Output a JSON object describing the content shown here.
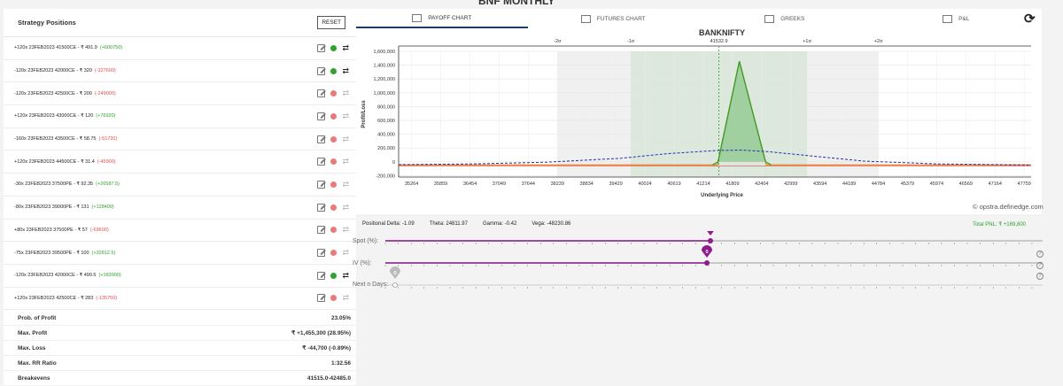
{
  "page_title": "BNF MONTHLY",
  "left_panel": {
    "title": "Strategy Positions",
    "reset_label": "RESET",
    "positions": [
      {
        "text": "+120x  23FEB2023  41500CE  - ₹ 491.9",
        "pnl": "(+600750)",
        "pnl_sign": "pos",
        "active": true
      },
      {
        "text": "-120x  23FEB2023  42000CE  - ₹ 320",
        "pnl": "(-327600)",
        "pnl_sign": "neg",
        "active": true
      },
      {
        "text": "-120x  23FEB2023  42500CE  - ₹ 200",
        "pnl": "(-249000)",
        "pnl_sign": "neg",
        "active": false
      },
      {
        "text": "+120x  23FEB2023  43000CE  - ₹ 120",
        "pnl": "(+76920)",
        "pnl_sign": "pos",
        "active": false
      },
      {
        "text": "-160x  23FEB2023  43500CE  - ₹ 58.75",
        "pnl": "(-51720)",
        "pnl_sign": "neg",
        "active": false
      },
      {
        "text": "+120x  23FEB2023  44500CE  - ₹ 31.4",
        "pnl": "(-45900)",
        "pnl_sign": "neg",
        "active": false
      },
      {
        "text": "-30x  23FEB2023  37500PE  - ₹ 92.35",
        "pnl": "(+26587.5)",
        "pnl_sign": "pos",
        "active": false
      },
      {
        "text": "-80x  23FEB2023  39000PE  - ₹ 131",
        "pnl": "(+128400)",
        "pnl_sign": "pos",
        "active": false
      },
      {
        "text": "+80x  23FEB2023  37500PE  - ₹ 57",
        "pnl": "(-69600)",
        "pnl_sign": "neg",
        "active": false
      },
      {
        "text": "-75x  23FEB2023  39500PE  - ₹ 100",
        "pnl": "(+32812.5)",
        "pnl_sign": "pos",
        "active": false
      },
      {
        "text": "-120x  23FEB2023  42000CE  - ₹ 490.5",
        "pnl": "(+183900)",
        "pnl_sign": "pos",
        "active": true
      },
      {
        "text": "+120x  23FEB2023  42500CE  - ₹ 283",
        "pnl": "(-135750)",
        "pnl_sign": "neg",
        "active": false
      }
    ],
    "stats": [
      {
        "label": "Prob. of Profit",
        "value": "23.05%"
      },
      {
        "label": "Max. Profit",
        "value": "₹ +1,455,300 (28.95%)"
      },
      {
        "label": "Max. Loss",
        "value": "₹ -44,700 (-0.89%)"
      },
      {
        "label": "Max. RR Ratio",
        "value": "1:32.56"
      },
      {
        "label": "Breakevens",
        "value": "41515.0-42485.0"
      }
    ]
  },
  "tabs": [
    {
      "label": "PAYOFF CHART",
      "icon": "area-chart-icon",
      "active": true
    },
    {
      "label": "FUTURES CHART",
      "icon": "bar-chart-icon",
      "active": false
    },
    {
      "label": "GREEKS",
      "icon": "greeks-table-icon",
      "active": false
    },
    {
      "label": "P&L",
      "icon": "pnl-table-icon",
      "active": false
    }
  ],
  "greeks_bar": {
    "delta": "Positional Delta: -1.09",
    "theta": "Theta: 24811.97",
    "gamma": "Gamma: -0.42",
    "vega": "Vega: -48230.86",
    "total_pnl": "Total PNL: ₹ +169,800"
  },
  "credit": "opstra.definedge.com",
  "sliders": {
    "spot_label": "Spot (%):",
    "spot_value": "0",
    "iv_label": "IV (%):",
    "iv_value": "0",
    "days_label": "Next n Days:",
    "days_value": "0",
    "help": "?"
  },
  "colors": {
    "profit": "#2ea12e",
    "loss": "#e24b4b",
    "expiry_line": "#f08a2b",
    "today_line": "#1f2fb0",
    "slider": "#8e1a8e",
    "sd_band_outer": "#f0f0f0",
    "sd_band_inner": "#dde8dd"
  },
  "chart_data": {
    "type": "line",
    "title": "BANKNIFTY",
    "xlabel": "Underlying Price",
    "ylabel": "Profit/Loss",
    "x_ticks": [
      35264,
      35859,
      36454,
      37049,
      37644,
      38239,
      38834,
      39429,
      40024,
      40619,
      41214,
      41809,
      42404,
      42999,
      43594,
      44189,
      44784,
      45379,
      45974,
      46569,
      47164,
      47759
    ],
    "y_ticks": [
      -200000,
      0,
      200000,
      400000,
      600000,
      800000,
      1000000,
      1200000,
      1400000,
      1600000
    ],
    "y_tick_labels": [
      "-200,000",
      "0",
      "200,000",
      "400,000",
      "600,000",
      "800,000",
      "1,000,000",
      "1,200,000",
      "1,400,000",
      "1,600,000"
    ],
    "xlim": [
      35000,
      47900
    ],
    "ylim": [
      -220000,
      1600000
    ],
    "spot": 41532.9,
    "top_axis": [
      {
        "label": "-2σ",
        "x": 38239
      },
      {
        "label": "-1σ",
        "x": 39735
      },
      {
        "label": "41532.9",
        "x": 41532.9
      },
      {
        "label": "+1σ",
        "x": 43330
      },
      {
        "label": "+2σ",
        "x": 44784
      }
    ],
    "series": [
      {
        "values_x": [
          35000,
          41400,
          41500,
          41950,
          42500,
          42600,
          47900
        ],
        "values_y": [
          -44700,
          -44700,
          -44700,
          1455300,
          -44700,
          -44700,
          -44700
        ]
      },
      {
        "values_x": [
          35000,
          36500,
          38000,
          39500,
          40500,
          41500,
          42000,
          42500,
          43500,
          44500,
          46000,
          47900
        ],
        "values_y": [
          -40000,
          -30000,
          -5000,
          50000,
          120000,
          165000,
          170000,
          150000,
          80000,
          10000,
          -30000,
          -45000
        ]
      }
    ]
  }
}
